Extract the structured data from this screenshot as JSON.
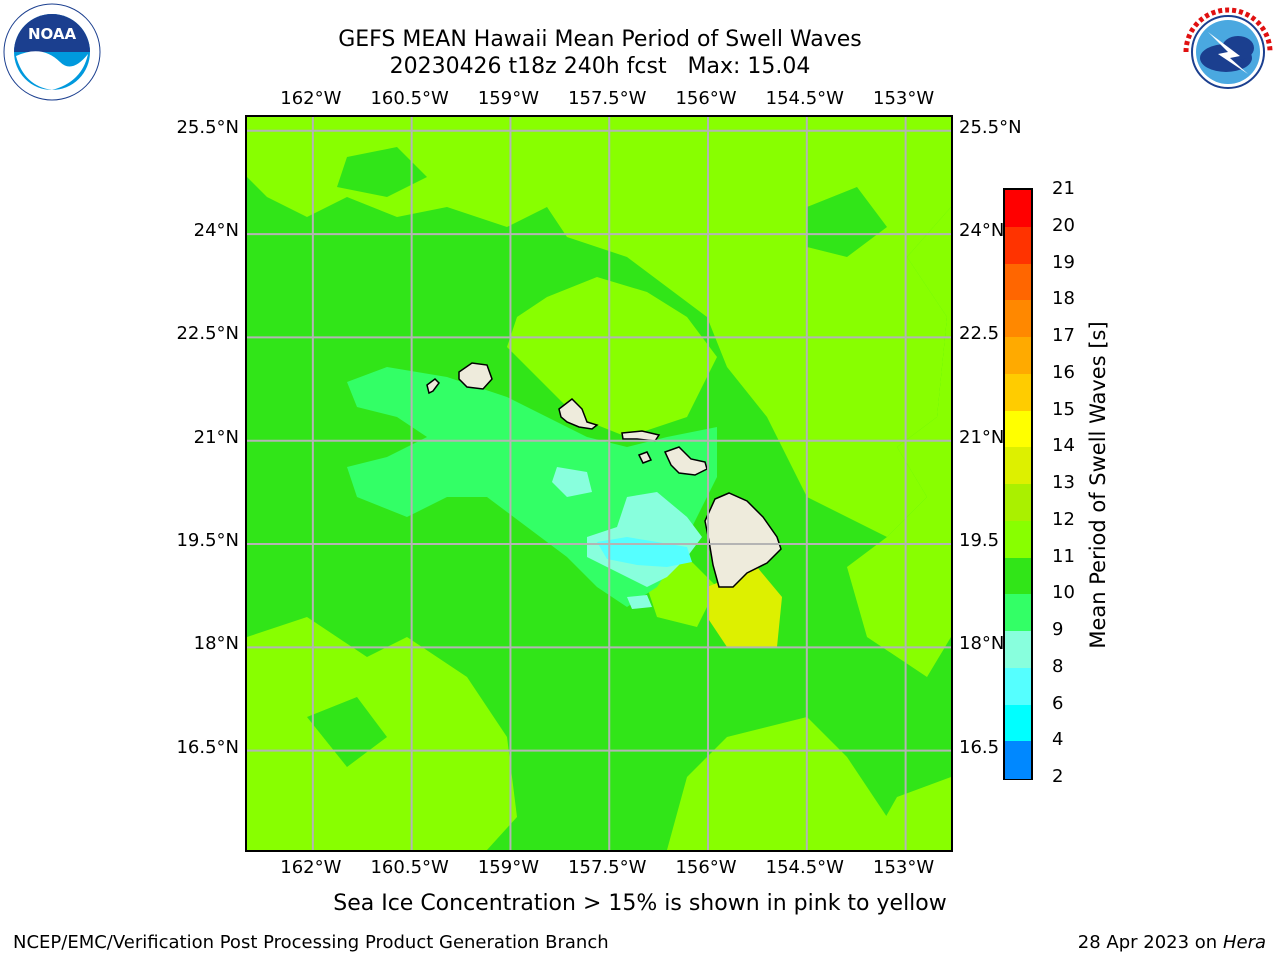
{
  "title": {
    "line1": "GEFS MEAN Hawaii Mean Period of Swell Waves",
    "line2": "20230426 t18z 240h fcst   Max: 15.04"
  },
  "logos": {
    "left": "noaa-logo",
    "left_text": "NOAA",
    "left_ring_text": "NATIONAL OCEANIC AND ATMOSPHERIC ADMINISTRATION · U.S. DEPARTMENT OF COMMERCE",
    "right": "national-weather-service-logo",
    "right_ring_text": "NATIONAL WEATHER SERVICE"
  },
  "map": {
    "lon_ticks": [
      "162°W",
      "160.5°W",
      "159°W",
      "157.5°W",
      "156°W",
      "154.5°W",
      "153°W"
    ],
    "lat_ticks_left": [
      "25.5°N",
      "24°N",
      "22.5°N",
      "21°N",
      "19.5°N",
      "18°N",
      "16.5°N"
    ],
    "lat_ticks_right": [
      "25.5°N",
      "24°N",
      "22.5",
      "21°N",
      "19.5",
      "18°N",
      "16.5"
    ],
    "lon_values": [
      -162,
      -160.5,
      -159,
      -157.5,
      -156,
      -154.5,
      -153
    ],
    "lat_values": [
      25.5,
      24,
      22.5,
      21,
      19.5,
      18,
      16.5
    ],
    "extent": {
      "lon_min": -163,
      "lon_max": -152.25,
      "lat_min": 15.0,
      "lat_max": 25.7
    },
    "grid": true,
    "land_color": "#eeebdc",
    "ocean_base_color": "#31e518"
  },
  "colorbar": {
    "title": "Mean Period of Swell Waves [s]",
    "labels": [
      "21",
      "20",
      "19",
      "18",
      "17",
      "16",
      "15",
      "14",
      "13",
      "12",
      "11",
      "10",
      "9",
      "8",
      "6",
      "4",
      "2"
    ],
    "colors": [
      "#ff0000",
      "#ff3300",
      "#ff6600",
      "#ff8800",
      "#ffaa00",
      "#ffcc00",
      "#ffff00",
      "#ddf000",
      "#aaf000",
      "#88ff00",
      "#31e518",
      "#33ff66",
      "#88ffdd",
      "#55ffff",
      "#00ffff",
      "#0088ff",
      "#0000ff"
    ]
  },
  "caption": "Sea Ice Concentration > 15% is shown in pink to yellow",
  "footer": {
    "left": "NCEP/EMC/Verification Post Processing Product Generation Branch",
    "right_prefix": "28 Apr 2023 on ",
    "right_host": "Hera"
  }
}
